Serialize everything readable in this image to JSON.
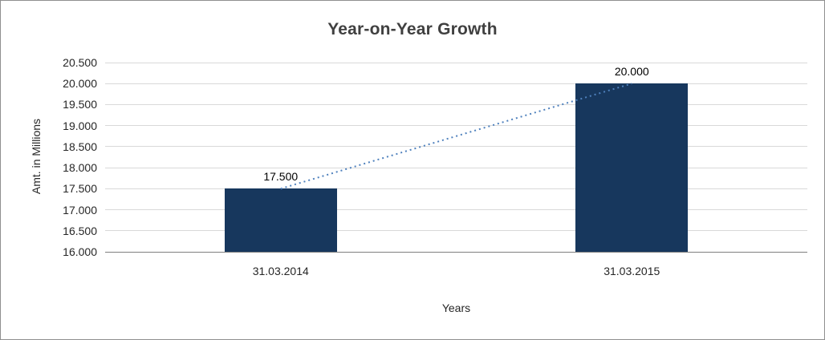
{
  "chart_data": {
    "type": "bar",
    "title": "Year-on-Year Growth",
    "xlabel": "Years",
    "ylabel": "Amt. in Millions",
    "categories": [
      "31.03.2014",
      "31.03.2015"
    ],
    "values": [
      17500,
      20000
    ],
    "data_labels": [
      "17.500",
      "20.000"
    ],
    "y_ticks": [
      {
        "value": 20500,
        "label": "20.500"
      },
      {
        "value": 20000,
        "label": "20.000"
      },
      {
        "value": 19500,
        "label": "19.500"
      },
      {
        "value": 19000,
        "label": "19.000"
      },
      {
        "value": 18500,
        "label": "18.500"
      },
      {
        "value": 18000,
        "label": "18.000"
      },
      {
        "value": 17500,
        "label": "17.500"
      },
      {
        "value": 17000,
        "label": "17.000"
      },
      {
        "value": 16500,
        "label": "16.500"
      },
      {
        "value": 16000,
        "label": "16.000"
      }
    ],
    "ylim": [
      16000,
      20500
    ],
    "grid": true,
    "legend": false,
    "has_trendline": true,
    "trendline_style": "dotted",
    "colors": {
      "bar": "#17375d",
      "trendline": "#4f81bd",
      "gridline": "#d9d9d9",
      "axis_line": "#808080",
      "title_text": "#404040",
      "tick_text": "#262626"
    }
  }
}
